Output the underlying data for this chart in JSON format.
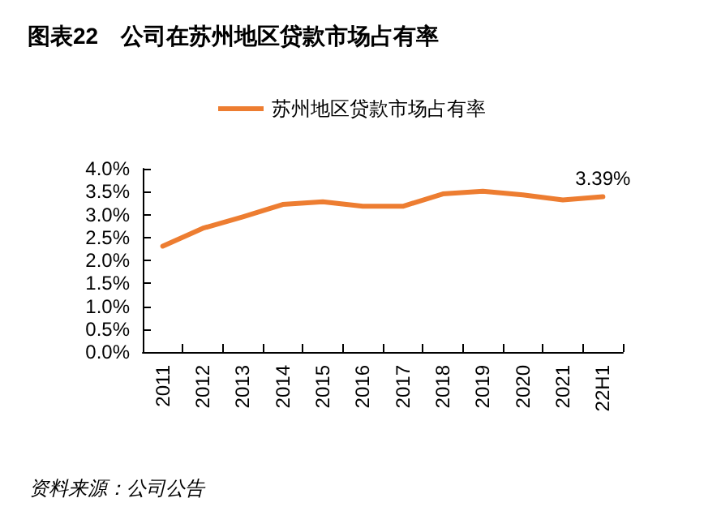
{
  "chart_data": {
    "type": "line",
    "title": "图表22　公司在苏州地区贷款市场占有率",
    "categories": [
      "2011",
      "2012",
      "2013",
      "2014",
      "2015",
      "2016",
      "2017",
      "2018",
      "2019",
      "2020",
      "2021",
      "22H1"
    ],
    "series": [
      {
        "name": "苏州地区贷款市场占有率",
        "color": "#ed7d31",
        "values": [
          2.31,
          2.7,
          2.95,
          3.22,
          3.28,
          3.18,
          3.18,
          3.45,
          3.51,
          3.43,
          3.32,
          3.39
        ],
        "value_labels": [
          null,
          null,
          null,
          null,
          null,
          null,
          null,
          null,
          null,
          null,
          null,
          "3.39%"
        ]
      }
    ],
    "ylim": [
      0,
      4
    ],
    "yticks": [
      {
        "value": 0,
        "label": "0.0%"
      },
      {
        "value": 0.5,
        "label": "0.5%"
      },
      {
        "value": 1,
        "label": "1.0%"
      },
      {
        "value": 1.5,
        "label": "1.5%"
      },
      {
        "value": 2,
        "label": "2.0%"
      },
      {
        "value": 2.5,
        "label": "2.5%"
      },
      {
        "value": 3,
        "label": "3.0%"
      },
      {
        "value": 3.5,
        "label": "3.5%"
      },
      {
        "value": 4,
        "label": "4.0%"
      }
    ],
    "grid": false,
    "legend": "top",
    "marker": "none",
    "line_style": "solid",
    "annotations": [
      "资料来源：公司公告"
    ]
  }
}
